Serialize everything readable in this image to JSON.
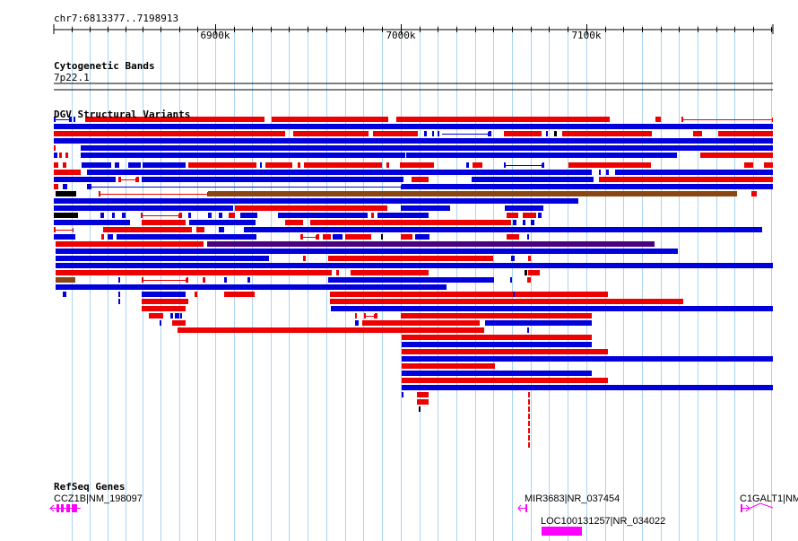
{
  "ruler": {
    "location": "chr7:6813377..7198913",
    "ticks": [
      {
        "label": "6900k",
        "pos": 6900000
      },
      {
        "label": "7000k",
        "pos": 7000000
      },
      {
        "label": "7100k",
        "pos": 7100000
      }
    ]
  },
  "tracks": {
    "cytobands": {
      "title": "Cytogenetic Bands",
      "band": "7p22.1"
    },
    "dgv": {
      "title": "DGV Structural Variants"
    },
    "refseq": {
      "title": "RefSeq Genes"
    }
  },
  "genes": [
    {
      "label": "CCZ1B|NM_198097"
    },
    {
      "label": "MIR3683|NR_037454"
    },
    {
      "label": "LOC100131257|NR_034022"
    },
    {
      "label": "C1GALT1|NM_"
    }
  ],
  "colors": {
    "loss": "#ee0000",
    "gain": "#0000dd",
    "complex": "#8b4513",
    "inversion": "#4b0082",
    "other": "#000000",
    "gene": "#ff00ff",
    "grid": "#aad4f0"
  }
}
